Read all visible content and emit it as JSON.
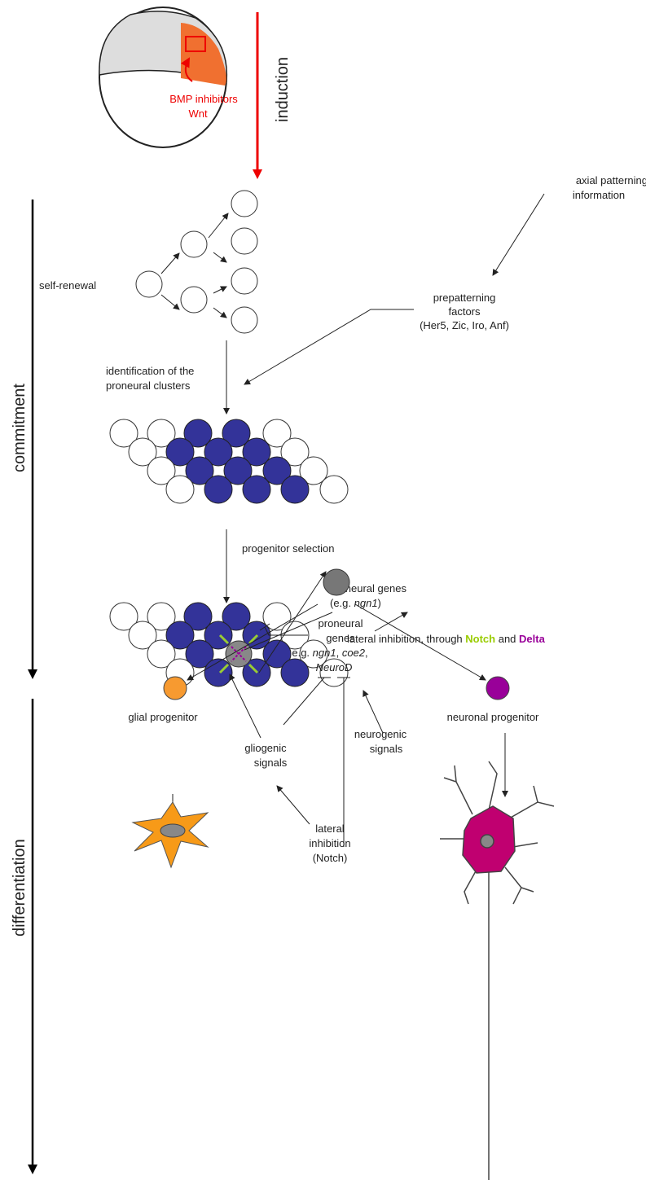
{
  "stages": {
    "induction": "induction",
    "commitment": "commitment",
    "differentiation": "differentiation"
  },
  "induction_labels": {
    "line1": "BMP inhibitors",
    "line2": "Wnt"
  },
  "axial": {
    "line1": "axial patterning",
    "line2": "information"
  },
  "prepatterning": {
    "line1": "prepatterning",
    "line2": "factors",
    "line3": "(Her5, Zic, Iro, Anf)"
  },
  "self_renewal": "self-renewal",
  "identification": {
    "line1": "identification of the",
    "line2": "proneural clusters"
  },
  "progenitor_selection": "progenitor selection",
  "proneural_genes_top": {
    "line1": "proneural genes",
    "line2_pre": "(e.g. ",
    "line2_italic": "ngn1",
    "line2_post": ")"
  },
  "lateral_inhibition_top": {
    "pre": "lateral inhibition, through ",
    "notch": "Notch",
    "mid": " and ",
    "delta": "Delta"
  },
  "proneural_genes_mid": {
    "line1": "proneural",
    "line2": "genes",
    "line3_pre": "e.g. ",
    "line3_a": "ngn1",
    "line3_sep": ", ",
    "line3_b": "coe2",
    "line3_post": ",",
    "line4": "NeuroD"
  },
  "glial_progenitor": "glial progenitor",
  "neuronal_progenitor": "neuronal progenitor",
  "gliogenic": {
    "line1": "gliogenic",
    "line2": "signals"
  },
  "neurogenic": {
    "line1": "neurogenic",
    "line2": "signals"
  },
  "lateral_inhibition_bottom": {
    "line1": "lateral",
    "line2": "inhibition",
    "line3": "(Notch)"
  }
}
